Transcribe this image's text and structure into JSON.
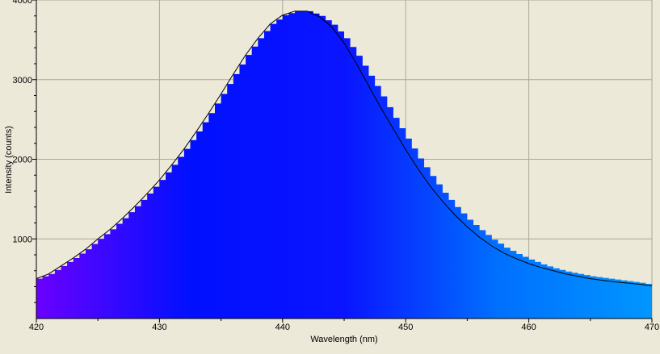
{
  "chart_data": {
    "type": "area",
    "title": "",
    "xlabel": "Wavelength (nm)",
    "ylabel": "Intensity (counts)",
    "xlim": [
      420,
      470
    ],
    "ylim": [
      0,
      4000
    ],
    "x_ticks": [
      "420",
      "430",
      "440",
      "450",
      "460",
      "470"
    ],
    "y_ticks": [
      "1000",
      "2000",
      "3000",
      "4000"
    ],
    "grid": true,
    "legend": "none",
    "fill_gradient": [
      "#6a00ff",
      "#0010ff",
      "#0a14ff",
      "#0070ff",
      "#0096ff"
    ],
    "line_color": "#000000",
    "series": [
      {
        "kind": "measured-histogram",
        "x": [
          420,
          421,
          422,
          423,
          424,
          425,
          426,
          427,
          428,
          429,
          430,
          431,
          432,
          433,
          434,
          435,
          436,
          437,
          438,
          439,
          440,
          441,
          442,
          443,
          444,
          445,
          446,
          447,
          448,
          449,
          450,
          451,
          452,
          453,
          454,
          455,
          456,
          457,
          458,
          459,
          460,
          461,
          462,
          463,
          464,
          465,
          466,
          467,
          468,
          469,
          470
        ],
        "values": [
          500,
          560,
          660,
          760,
          870,
          1000,
          1120,
          1260,
          1410,
          1570,
          1740,
          1930,
          2130,
          2350,
          2580,
          2820,
          3070,
          3310,
          3520,
          3700,
          3810,
          3860,
          3860,
          3800,
          3690,
          3520,
          3300,
          3050,
          2790,
          2520,
          2260,
          2010,
          1790,
          1580,
          1400,
          1240,
          1110,
          990,
          890,
          810,
          740,
          680,
          630,
          590,
          560,
          530,
          510,
          490,
          470,
          450,
          420
        ]
      },
      {
        "kind": "fit-line",
        "x": [
          420,
          421,
          422,
          423,
          424,
          425,
          426,
          427,
          428,
          429,
          430,
          431,
          432,
          433,
          434,
          435,
          436,
          437,
          438,
          439,
          440,
          441,
          442,
          443,
          444,
          445,
          446,
          447,
          448,
          449,
          450,
          451,
          452,
          453,
          454,
          455,
          456,
          457,
          458,
          459,
          460,
          461,
          462,
          463,
          464,
          465,
          466,
          467,
          468,
          469,
          470
        ],
        "values": [
          500,
          560,
          660,
          760,
          870,
          1000,
          1120,
          1260,
          1410,
          1570,
          1740,
          1930,
          2130,
          2350,
          2580,
          2820,
          3070,
          3310,
          3520,
          3700,
          3810,
          3860,
          3860,
          3790,
          3660,
          3460,
          3200,
          2920,
          2640,
          2380,
          2120,
          1880,
          1660,
          1470,
          1300,
          1150,
          1020,
          910,
          820,
          750,
          690,
          640,
          600,
          560,
          530,
          500,
          480,
          460,
          445,
          430,
          410
        ]
      }
    ]
  }
}
